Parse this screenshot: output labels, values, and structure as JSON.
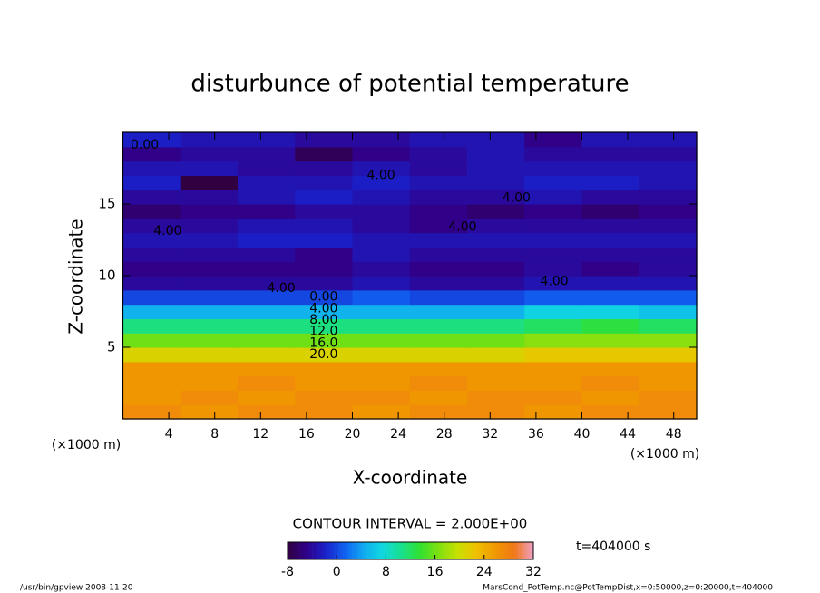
{
  "chart_data": {
    "type": "contour",
    "title": "disturbunce of potential temperature",
    "xlabel": "X-coordinate",
    "ylabel": "Z-coordinate",
    "x_unit": "(×1000 m)",
    "contour_interval": "CONTOUR INTERVAL = 2.000E+00",
    "time_label": "t=404000 s",
    "footer_left": "/usr/bin/gpview   2008-11-20",
    "footer_right": "MarsCond_PotTemp.nc@PotTempDist,x=0:50000,z=0:20000,t=404000",
    "xlim": [
      0,
      50
    ],
    "ylim": [
      0,
      20
    ],
    "xticks": [
      4,
      8,
      12,
      16,
      20,
      24,
      28,
      32,
      36,
      40,
      44,
      48
    ],
    "yticks": [
      5,
      10,
      15
    ],
    "x": [
      2.5,
      7.5,
      12.5,
      17.5,
      22.5,
      27.5,
      32.5,
      37.5,
      42.5,
      47.5
    ],
    "y": [
      0.5,
      1.5,
      2.5,
      3.5,
      4.5,
      5.5,
      6.5,
      7.5,
      8.5,
      9.5,
      10.5,
      11.5,
      12.5,
      13.5,
      14.5,
      15.5,
      16.5,
      17.5,
      18.5,
      19.5
    ],
    "values": [
      [
        27,
        26,
        27,
        27,
        26,
        27,
        27,
        26,
        27,
        27
      ],
      [
        26,
        27,
        26,
        27,
        27,
        26,
        27,
        27,
        26,
        27
      ],
      [
        26,
        26,
        27,
        26,
        26,
        27,
        26,
        26,
        27,
        26
      ],
      [
        26,
        26,
        26,
        26,
        26,
        26,
        26,
        26,
        26,
        26
      ],
      [
        21,
        21,
        21,
        21,
        21,
        21,
        21,
        22,
        22,
        22
      ],
      [
        16,
        16,
        16,
        16,
        16,
        16,
        16,
        17,
        17,
        17
      ],
      [
        11,
        11,
        11,
        11,
        11,
        11,
        11,
        12,
        13,
        12
      ],
      [
        5,
        5,
        5,
        5,
        5,
        5,
        5,
        7,
        7,
        6
      ],
      [
        0,
        0,
        0,
        0,
        1,
        0,
        0,
        1,
        1,
        1
      ],
      [
        -4,
        -4,
        -4,
        -4,
        -3,
        -4,
        -4,
        -3,
        -3,
        -3
      ],
      [
        -5,
        -5,
        -5,
        -5,
        -4,
        -5,
        -5,
        -4,
        -5,
        -4
      ],
      [
        -4,
        -4,
        -4,
        -5,
        -3,
        -4,
        -4,
        -4,
        -4,
        -4
      ],
      [
        -3,
        -3,
        -2,
        -2,
        -3,
        -3,
        -3,
        -3,
        -3,
        -3
      ],
      [
        -4,
        -4,
        -3,
        -3,
        -4,
        -5,
        -4,
        -4,
        -4,
        -4
      ],
      [
        -6,
        -5,
        -5,
        -4,
        -4,
        -5,
        -6,
        -5,
        -6,
        -5
      ],
      [
        -4,
        -4,
        -3,
        -2,
        -3,
        -4,
        -4,
        -3,
        -4,
        -4
      ],
      [
        -2,
        -8,
        -3,
        -3,
        -2,
        -3,
        -3,
        -2,
        -2,
        -3
      ],
      [
        -3,
        -3,
        -4,
        -4,
        -3,
        -4,
        -3,
        -3,
        -3,
        -3
      ],
      [
        -5,
        -4,
        -4,
        -7,
        -5,
        -4,
        -3,
        -4,
        -4,
        -4
      ],
      [
        -2,
        -3,
        -3,
        -4,
        -4,
        -3,
        -3,
        -5,
        -3,
        -3
      ]
    ],
    "colormap": [
      "#300040",
      "#30008a",
      "#1a20c8",
      "#1060f0",
      "#10a8f0",
      "#10d8e0",
      "#18e090",
      "#30e030",
      "#80e010",
      "#c8e000",
      "#f0c000",
      "#f09800",
      "#f07818",
      "#f0a0c8"
    ],
    "colorbar_lim": [
      -8,
      32
    ],
    "colorbar_ticks": [
      -8,
      0,
      8,
      16,
      24,
      32
    ],
    "contour_labels": [
      {
        "label": "0.00",
        "x": 1.9,
        "y": 19.1
      },
      {
        "label": "4.00",
        "x": 22.5,
        "y": 17.0
      },
      {
        "label": "4.00",
        "x": 34.3,
        "y": 15.4
      },
      {
        "label": "4.00",
        "x": 3.9,
        "y": 13.1
      },
      {
        "label": "4.00",
        "x": 29.6,
        "y": 13.4
      },
      {
        "label": "4.00",
        "x": 13.8,
        "y": 9.1
      },
      {
        "label": "4.00",
        "x": 37.6,
        "y": 9.6
      },
      {
        "label": "0.00",
        "x": 17.5,
        "y": 8.5
      },
      {
        "label": "4.00",
        "x": 17.5,
        "y": 7.7
      },
      {
        "label": "8.00",
        "x": 17.5,
        "y": 6.9
      },
      {
        "label": "12.0",
        "x": 17.5,
        "y": 6.1
      },
      {
        "label": "16.0",
        "x": 17.5,
        "y": 5.3
      },
      {
        "label": "20.0",
        "x": 17.5,
        "y": 4.5
      }
    ]
  }
}
